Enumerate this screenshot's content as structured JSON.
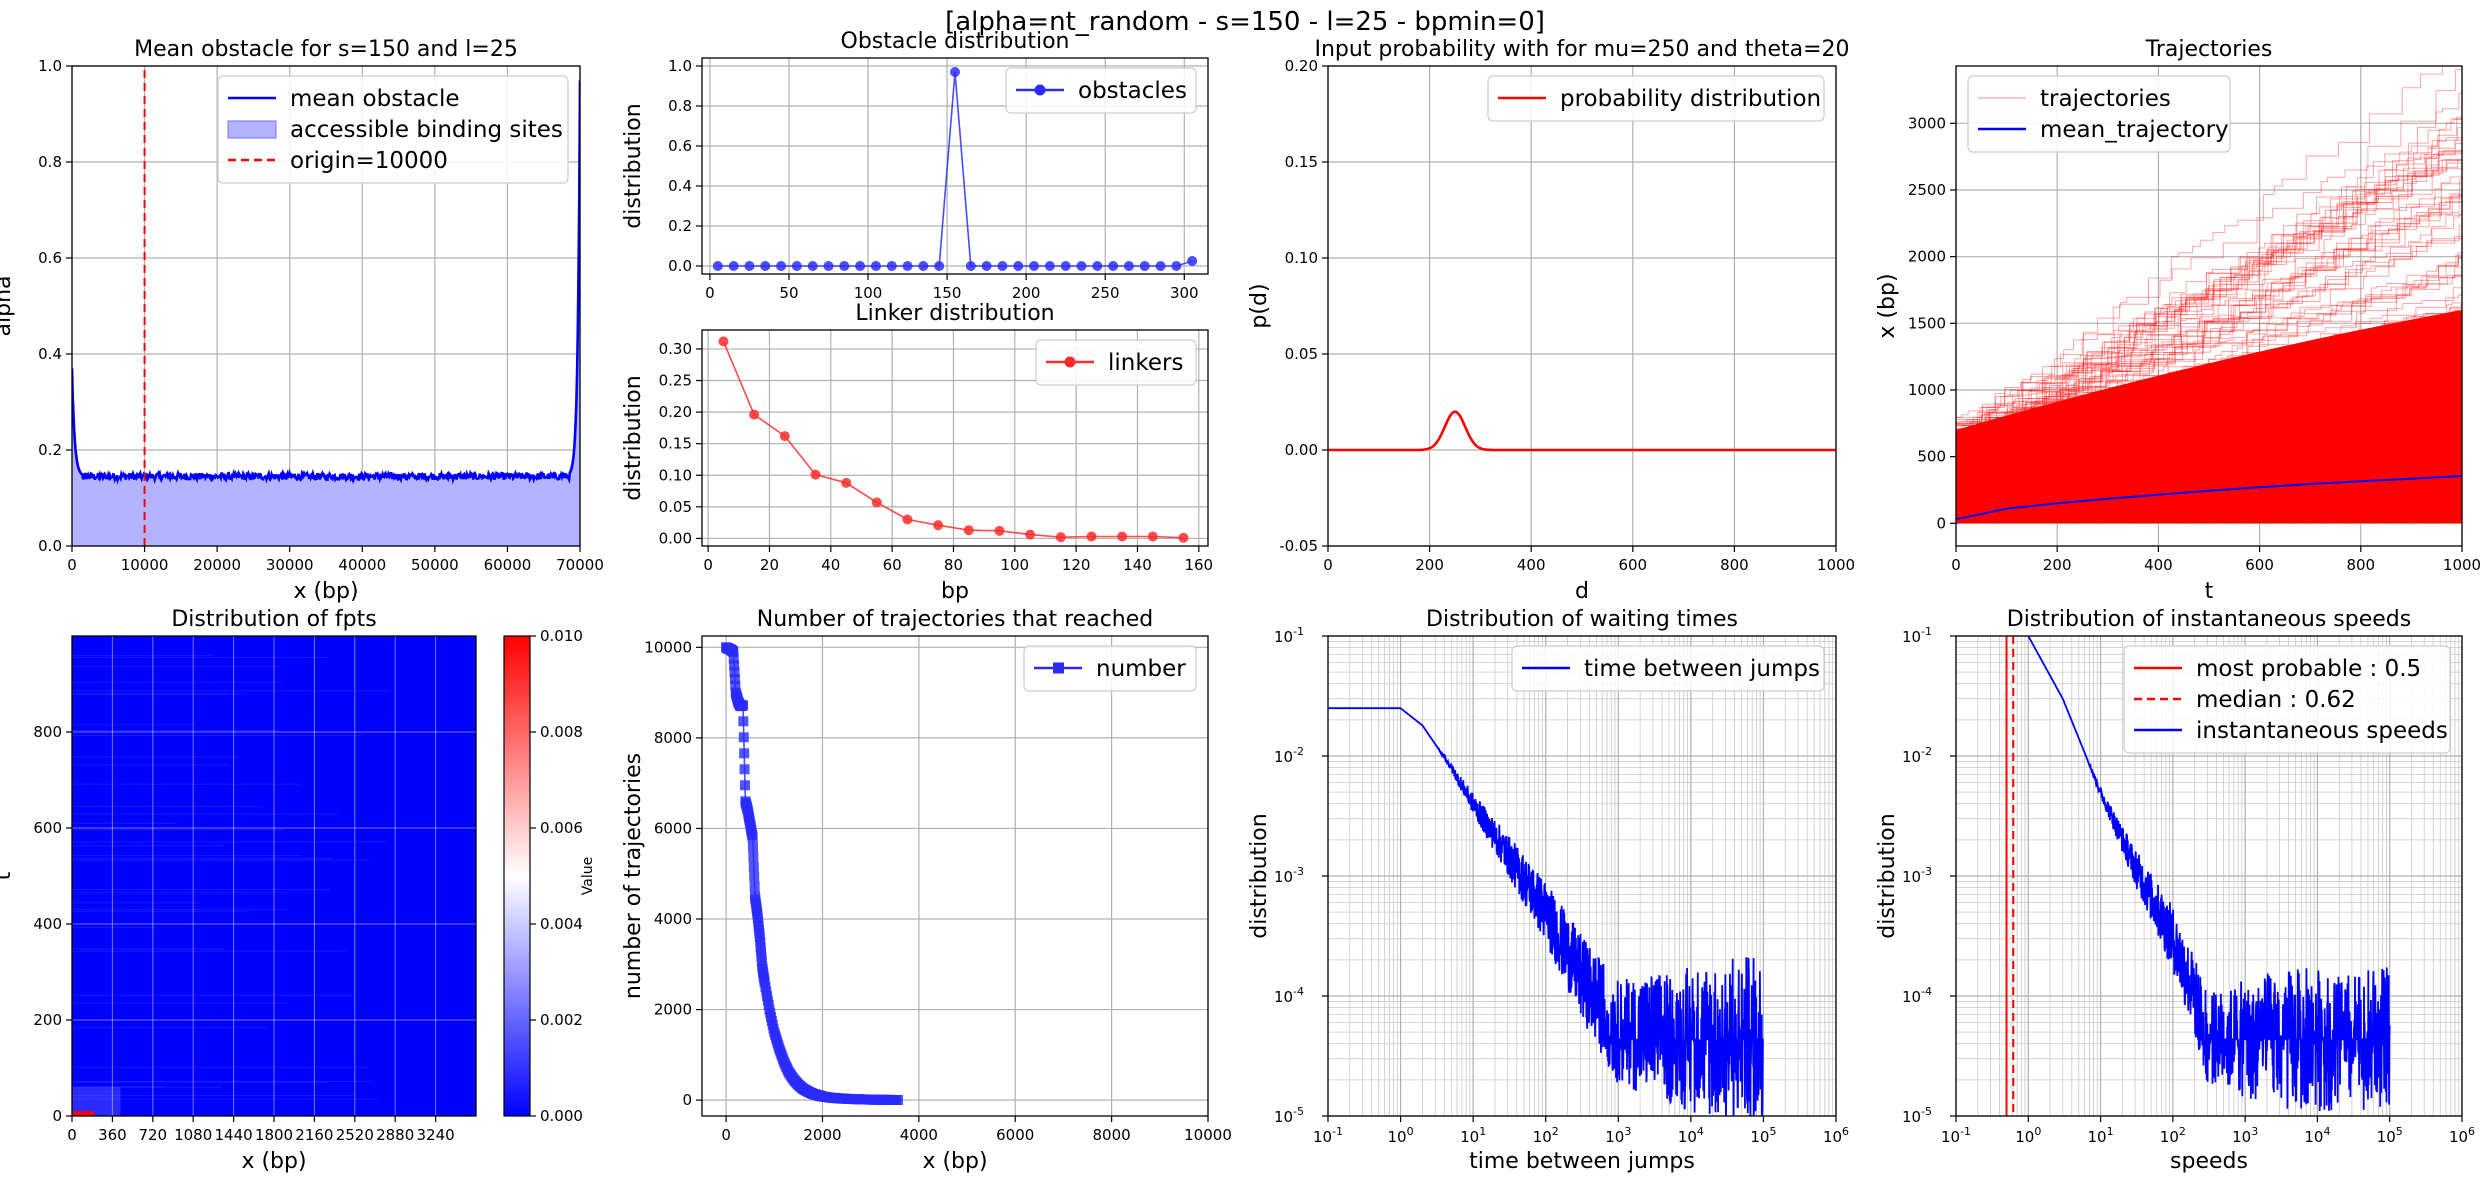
{
  "suptitle": "[alpha=nt_random - s=150 - l=25 - bpmin=0]",
  "chart_data": [
    {
      "id": "mean_obstacle",
      "type": "line",
      "title": "Mean obstacle for s=150 and l=25",
      "xlabel": "x (bp)",
      "ylabel": "alpha",
      "xlim": [
        0,
        70000
      ],
      "ylim": [
        0,
        1.0
      ],
      "xticks": [
        0,
        10000,
        20000,
        30000,
        40000,
        50000,
        60000,
        70000
      ],
      "yticks": [
        0.0,
        0.2,
        0.4,
        0.6,
        0.8,
        1.0
      ],
      "tick_decimals": 1,
      "grid": true,
      "legend_position": "top-right",
      "series": [
        {
          "name": "mean obstacle",
          "color": "#0000ff",
          "style": "solid",
          "plateau": 0.145,
          "edge_left": 0.37,
          "edge_right": 0.97
        },
        {
          "name": "accessible binding sites",
          "color": "#b3b3ff",
          "style": "fill"
        },
        {
          "name": "origin=10000",
          "color": "#ff0000",
          "style": "dashed",
          "x": 10000
        }
      ]
    },
    {
      "id": "obstacle_distribution",
      "type": "line",
      "title": "Obstacle distribution",
      "xlabel": "",
      "ylabel": "distribution",
      "xlim": [
        -5,
        315
      ],
      "ylim": [
        -0.04,
        1.04
      ],
      "xticks": [
        0,
        50,
        100,
        150,
        200,
        250,
        300
      ],
      "yticks": [
        0.0,
        0.2,
        0.4,
        0.6,
        0.8,
        1.0
      ],
      "tick_decimals": 1,
      "grid": true,
      "legend_position": "top-right",
      "series": [
        {
          "name": "obstacles",
          "color": "#2b2bff",
          "marker": "circle",
          "x": [
            5,
            15,
            25,
            35,
            45,
            55,
            65,
            75,
            85,
            95,
            105,
            115,
            125,
            135,
            145,
            155,
            165,
            175,
            185,
            195,
            205,
            215,
            225,
            235,
            245,
            255,
            265,
            275,
            285,
            295,
            305
          ],
          "y": [
            0,
            0,
            0,
            0,
            0,
            0,
            0,
            0,
            0,
            0,
            0,
            0,
            0,
            0,
            0,
            0.97,
            0,
            0,
            0,
            0,
            0,
            0,
            0,
            0,
            0,
            0,
            0,
            0,
            0,
            0,
            0.025
          ]
        }
      ]
    },
    {
      "id": "linker_distribution",
      "type": "line",
      "title": "Linker distribution",
      "xlabel": "bp",
      "ylabel": "distribution",
      "xlim": [
        -2,
        163
      ],
      "ylim": [
        -0.012,
        0.33
      ],
      "xticks": [
        0,
        20,
        40,
        60,
        80,
        100,
        120,
        140,
        160
      ],
      "yticks": [
        0.0,
        0.05,
        0.1,
        0.15,
        0.2,
        0.25,
        0.3
      ],
      "tick_decimals": 2,
      "grid": true,
      "legend_position": "top-right",
      "series": [
        {
          "name": "linkers",
          "color": "#ff2b2b",
          "marker": "circle",
          "x": [
            5,
            15,
            25,
            35,
            45,
            55,
            65,
            75,
            85,
            95,
            105,
            115,
            125,
            135,
            145,
            155
          ],
          "y": [
            0.312,
            0.196,
            0.162,
            0.101,
            0.088,
            0.057,
            0.03,
            0.021,
            0.013,
            0.012,
            0.006,
            0.002,
            0.003,
            0.003,
            0.003,
            0.001
          ]
        }
      ]
    },
    {
      "id": "input_probability",
      "type": "line",
      "title": "Input probability with for mu=250 and theta=20",
      "xlabel": "d",
      "ylabel": "p(d)",
      "xlim": [
        0,
        1000
      ],
      "ylim": [
        -0.05,
        0.2
      ],
      "xticks": [
        0,
        200,
        400,
        600,
        800,
        1000
      ],
      "yticks": [
        -0.05,
        0.0,
        0.05,
        0.1,
        0.15,
        0.2
      ],
      "tick_decimals": 2,
      "grid": true,
      "legend_position": "top-right",
      "series": [
        {
          "name": "probability distribution",
          "color": "#ff0000",
          "mu": 250,
          "theta": 20,
          "peak": 0.02
        }
      ]
    },
    {
      "id": "trajectories",
      "type": "line",
      "title": "Trajectories",
      "xlabel": "t",
      "ylabel": "x (bp)",
      "xlim": [
        0,
        1000
      ],
      "ylim": [
        -170,
        3430
      ],
      "xticks": [
        0,
        200,
        400,
        600,
        800,
        1000
      ],
      "yticks": [
        0,
        500,
        1000,
        1500,
        2000,
        2500,
        3000
      ],
      "tick_decimals": 0,
      "grid": true,
      "legend_position": "top-left",
      "series": [
        {
          "name": "trajectories",
          "color": "#ff0000",
          "style": "many-lines"
        },
        {
          "name": "mean_trajectory",
          "color": "#0000ff",
          "x": [
            0,
            100,
            200,
            300,
            400,
            500,
            600,
            700,
            800,
            900,
            1000
          ],
          "y": [
            30,
            110,
            150,
            185,
            215,
            245,
            270,
            295,
            315,
            335,
            355
          ]
        }
      ]
    },
    {
      "id": "fpts",
      "type": "heatmap",
      "title": "Distribution of fpts",
      "xlabel": "x (bp)",
      "ylabel": "t",
      "xlim": [
        0,
        3600
      ],
      "ylim": [
        0,
        1000
      ],
      "xticks": [
        0,
        360,
        720,
        1080,
        1440,
        1800,
        2160,
        2520,
        2880,
        3240
      ],
      "yticks": [
        0,
        200,
        400,
        600,
        800
      ],
      "tick_decimals": 0,
      "colorbar": {
        "label": "Value",
        "min": 0.0,
        "max": 0.01,
        "ticks": [
          0.0,
          0.002,
          0.004,
          0.006,
          0.008,
          0.01
        ],
        "colormap": "bwr"
      }
    },
    {
      "id": "reached",
      "type": "line",
      "title": "Number of trajectories that reached",
      "xlabel": "x (bp)",
      "ylabel": "number of trajectories",
      "xlim": [
        -500,
        10000
      ],
      "ylim": [
        -350,
        10250
      ],
      "xticks": [
        0,
        2000,
        4000,
        6000,
        8000,
        10000
      ],
      "yticks": [
        0,
        2000,
        4000,
        6000,
        8000,
        10000
      ],
      "tick_decimals": 0,
      "grid": true,
      "legend_position": "top-right",
      "series": [
        {
          "name": "number",
          "color": "#2b2bff",
          "marker": "square",
          "x": [
            0,
            50,
            100,
            150,
            200,
            250,
            300,
            350,
            400,
            450,
            500,
            550,
            600,
            650,
            700,
            750,
            800,
            900,
            1000,
            1100,
            1200,
            1300,
            1400,
            1500,
            1600,
            1700,
            1800,
            1900,
            2000,
            2200,
            2400,
            2600,
            2800,
            3000,
            3200,
            3400,
            3600
          ],
          "y": [
            10000,
            9970,
            9950,
            9900,
            9000,
            8800,
            8700,
            8720,
            6600,
            6400,
            6100,
            5800,
            4500,
            4100,
            3600,
            2950,
            2600,
            2000,
            1500,
            1150,
            850,
            620,
            460,
            340,
            250,
            190,
            140,
            110,
            80,
            50,
            35,
            25,
            18,
            12,
            8,
            5,
            3
          ]
        }
      ]
    },
    {
      "id": "waiting_times",
      "type": "line",
      "title": "Distribution of waiting times",
      "xlabel": "time between jumps",
      "ylabel": "distribution",
      "xscale": "log",
      "yscale": "log",
      "xlim": [
        0.1,
        1000000
      ],
      "ylim": [
        1e-05,
        0.1
      ],
      "grid": true,
      "legend_position": "top-right",
      "series": [
        {
          "name": "time between jumps",
          "color": "#0000ff",
          "x": [
            0.1,
            1,
            2,
            5,
            10,
            30,
            100,
            300,
            1000,
            10000,
            100000
          ],
          "y": [
            0.025,
            0.025,
            0.018,
            0.008,
            0.004,
            0.0015,
            0.0005,
            0.00015,
            5e-05,
            4.35e-05,
            4.35e-05
          ]
        }
      ]
    },
    {
      "id": "speeds",
      "type": "line",
      "title": "Distribution of instantaneous speeds",
      "xlabel": "speeds",
      "ylabel": "distribution",
      "xscale": "log",
      "yscale": "log",
      "xlim": [
        0.1,
        1000000
      ],
      "ylim": [
        1e-05,
        0.1
      ],
      "grid": true,
      "legend_position": "top-right",
      "series": [
        {
          "name": "most probable : 0.5",
          "color": "#ff0000",
          "style": "solid",
          "x": 0.5
        },
        {
          "name": "median : 0.62",
          "color": "#ff0000",
          "style": "dashed",
          "x": 0.62
        },
        {
          "name": "instantaneous speeds",
          "color": "#0000ff",
          "x": [
            1,
            3,
            10,
            30,
            100,
            200,
            300,
            1000,
            10000,
            100000
          ],
          "y": [
            0.1,
            0.03,
            0.005,
            0.0012,
            0.0003,
            0.0001,
            4.35e-05,
            4.35e-05,
            4.35e-05,
            4.35e-05
          ]
        }
      ]
    }
  ]
}
